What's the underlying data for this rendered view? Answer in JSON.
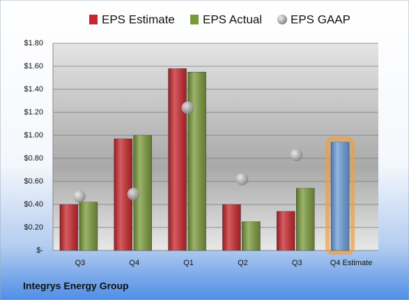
{
  "chart_data": {
    "type": "bar",
    "title": "Integrys Energy Group",
    "categories": [
      "Q3",
      "Q4",
      "Q1",
      "Q2",
      "Q3",
      "Q4 Estimate"
    ],
    "series": [
      {
        "name": "EPS Estimate",
        "color": "#c8262c",
        "values": [
          0.4,
          0.97,
          1.58,
          0.4,
          0.34,
          0.94
        ],
        "point_colors": [
          null,
          null,
          null,
          null,
          null,
          "#6d9ed8"
        ]
      },
      {
        "name": "EPS Actual",
        "color": "#7a9a3a",
        "values": [
          0.42,
          1.0,
          1.55,
          0.25,
          0.54,
          null
        ]
      },
      {
        "name": "EPS GAAP",
        "color": "#a0a0a0",
        "marker": "circle",
        "values": [
          0.47,
          0.49,
          1.24,
          0.62,
          0.83,
          null
        ]
      }
    ],
    "ylim": [
      0,
      1.8
    ],
    "yticks": [
      {
        "value": 0,
        "label": "$-"
      },
      {
        "value": 0.2,
        "label": "$0.20"
      },
      {
        "value": 0.4,
        "label": "$0.40"
      },
      {
        "value": 0.6,
        "label": "$0.60"
      },
      {
        "value": 0.8,
        "label": "$0.80"
      },
      {
        "value": 1.0,
        "label": "$1.00"
      },
      {
        "value": 1.2,
        "label": "$1.20"
      },
      {
        "value": 1.4,
        "label": "$1.40"
      },
      {
        "value": 1.6,
        "label": "$1.60"
      },
      {
        "value": 1.8,
        "label": "$1.80"
      }
    ],
    "grid": true,
    "legend": "top"
  }
}
